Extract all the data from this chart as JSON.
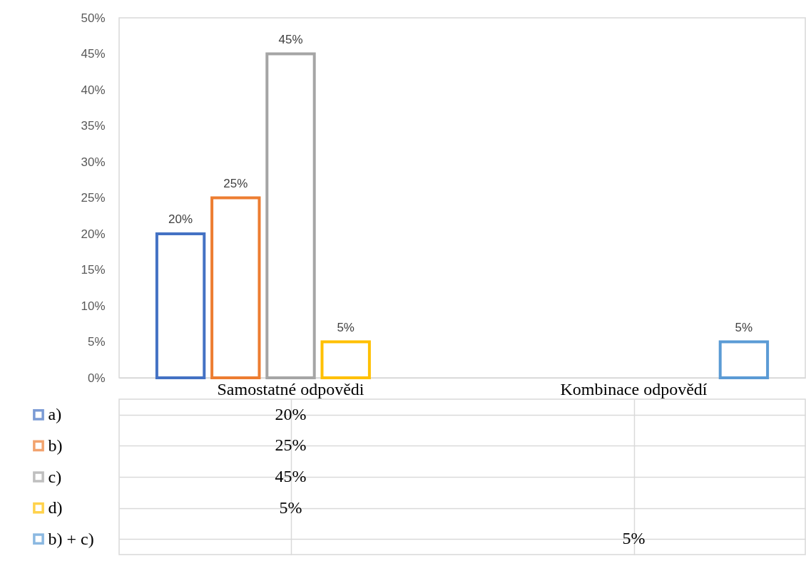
{
  "chart_data": {
    "type": "bar",
    "categories": [
      "Samostatné odpovědi",
      "Kombinace odpovědí"
    ],
    "series": [
      {
        "name": "a)",
        "color": "#4472c4",
        "values": [
          20,
          null
        ],
        "value_labels": [
          "20%",
          null
        ]
      },
      {
        "name": "b)",
        "color": "#ed7d31",
        "values": [
          25,
          null
        ],
        "value_labels": [
          "25%",
          null
        ]
      },
      {
        "name": "c)",
        "color": "#a5a5a5",
        "values": [
          45,
          null
        ],
        "value_labels": [
          "45%",
          null
        ]
      },
      {
        "name": "d)",
        "color": "#ffc000",
        "values": [
          5,
          null
        ],
        "value_labels": [
          "5%",
          null
        ]
      },
      {
        "name": "b) + c)",
        "color": "#5b9bd5",
        "values": [
          null,
          5
        ],
        "value_labels": [
          null,
          "5%"
        ]
      }
    ],
    "ylim": [
      0,
      50
    ],
    "yticks": [
      {
        "value": 0,
        "label": "0%"
      },
      {
        "value": 5,
        "label": "5%"
      },
      {
        "value": 10,
        "label": "10%"
      },
      {
        "value": 15,
        "label": "15%"
      },
      {
        "value": 20,
        "label": "20%"
      },
      {
        "value": 25,
        "label": "25%"
      },
      {
        "value": 30,
        "label": "30%"
      },
      {
        "value": 35,
        "label": "35%"
      },
      {
        "value": 40,
        "label": "40%"
      },
      {
        "value": 45,
        "label": "45%"
      },
      {
        "value": 50,
        "label": "50%"
      }
    ],
    "legend": "bottom"
  }
}
